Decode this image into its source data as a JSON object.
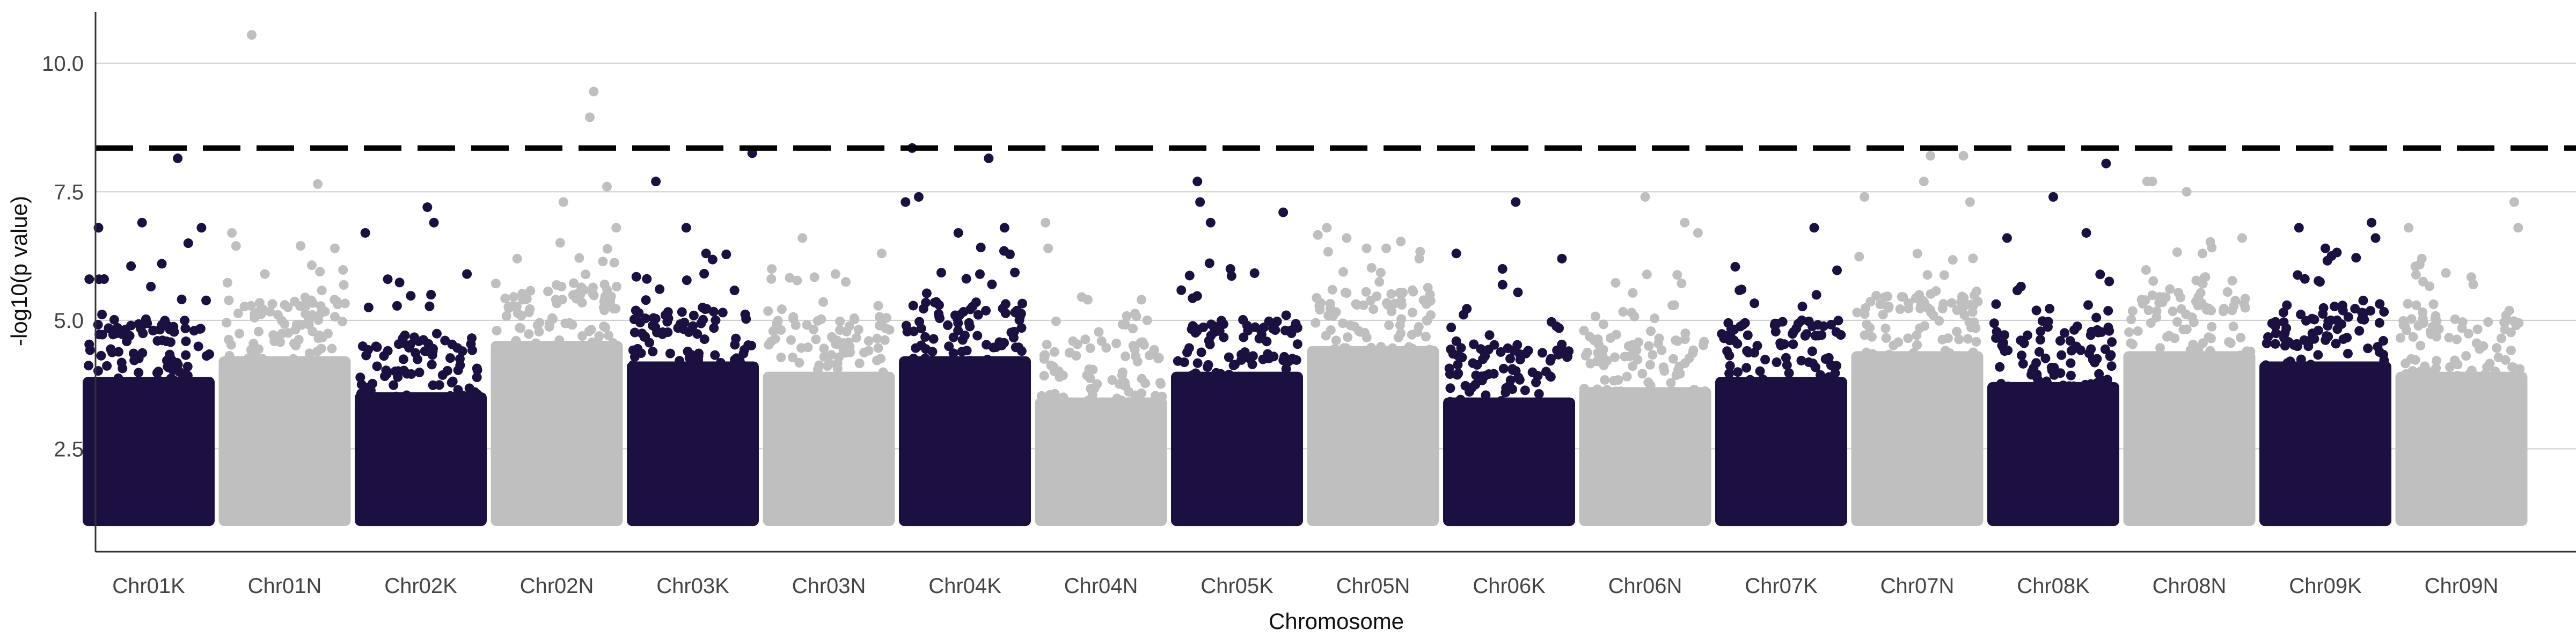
{
  "chart_data": {
    "type": "scatter",
    "subtype": "manhattan",
    "title": "",
    "xlabel": "Chromosome",
    "ylabel": "-log10(p value)",
    "ylim": [
      0.5,
      11.0
    ],
    "yticks": [
      2.5,
      5.0,
      7.5,
      10.0
    ],
    "grid": "horizontal",
    "legend": "none",
    "colors": {
      "odd": "#1c1040",
      "even": "#bfbfbf",
      "threshold": "#000000",
      "grid": "#cccccc"
    },
    "threshold": {
      "value": 8.35,
      "style": "dashed"
    },
    "categories": [
      "Chr01K",
      "Chr01N",
      "Chr02K",
      "Chr02N",
      "Chr03K",
      "Chr03N",
      "Chr04K",
      "Chr04N",
      "Chr05K",
      "Chr05N",
      "Chr06K",
      "Chr06N",
      "Chr07K",
      "Chr07N",
      "Chr08K",
      "Chr08N",
      "Chr09K",
      "Chr09N"
    ],
    "series": [
      {
        "chromosome": "Chr01K",
        "color_group": "odd",
        "dense_top": 4.5,
        "peaks": [
          [
            0.05,
            5.8
          ],
          [
            0.12,
            6.8
          ],
          [
            0.45,
            6.9
          ],
          [
            0.6,
            6.1
          ],
          [
            0.72,
            8.15
          ],
          [
            0.8,
            6.5
          ],
          [
            0.9,
            6.8
          ]
        ]
      },
      {
        "chromosome": "Chr01N",
        "color_group": "even",
        "dense_top": 4.9,
        "peaks": [
          [
            0.1,
            6.7
          ],
          [
            0.25,
            10.55
          ],
          [
            0.35,
            5.9
          ],
          [
            0.5,
            5.3
          ],
          [
            0.75,
            7.65
          ],
          [
            0.88,
            6.4
          ]
        ]
      },
      {
        "chromosome": "Chr02K",
        "color_group": "odd",
        "dense_top": 4.2,
        "peaks": [
          [
            0.08,
            6.7
          ],
          [
            0.25,
            5.8
          ],
          [
            0.55,
            7.2
          ],
          [
            0.6,
            6.9
          ],
          [
            0.85,
            5.9
          ]
        ]
      },
      {
        "chromosome": "Chr02N",
        "color_group": "even",
        "dense_top": 5.2,
        "peaks": [
          [
            0.2,
            6.2
          ],
          [
            0.55,
            7.3
          ],
          [
            0.75,
            8.95
          ],
          [
            0.78,
            9.45
          ],
          [
            0.88,
            7.6
          ],
          [
            0.95,
            6.8
          ]
        ]
      },
      {
        "chromosome": "Chr03K",
        "color_group": "odd",
        "dense_top": 4.8,
        "peaks": [
          [
            0.22,
            7.7
          ],
          [
            0.45,
            6.8
          ],
          [
            0.6,
            6.3
          ],
          [
            0.95,
            8.25
          ]
        ]
      },
      {
        "chromosome": "Chr03N",
        "color_group": "even",
        "dense_top": 4.6,
        "peaks": [
          [
            0.3,
            6.6
          ],
          [
            0.55,
            5.9
          ],
          [
            0.9,
            6.3
          ]
        ]
      },
      {
        "chromosome": "Chr04K",
        "color_group": "odd",
        "dense_top": 4.9,
        "peaks": [
          [
            0.05,
            7.3
          ],
          [
            0.1,
            8.35
          ],
          [
            0.15,
            7.4
          ],
          [
            0.45,
            6.7
          ],
          [
            0.68,
            8.15
          ],
          [
            0.8,
            6.8
          ]
        ]
      },
      {
        "chromosome": "Chr04N",
        "color_group": "even",
        "dense_top": 4.1,
        "peaks": [
          [
            0.08,
            6.9
          ],
          [
            0.1,
            6.4
          ],
          [
            0.4,
            5.4
          ],
          [
            0.85,
            5.0
          ]
        ]
      },
      {
        "chromosome": "Chr05K",
        "color_group": "odd",
        "dense_top": 4.6,
        "peaks": [
          [
            0.2,
            7.7
          ],
          [
            0.22,
            7.3
          ],
          [
            0.3,
            6.9
          ],
          [
            0.45,
            6.0
          ],
          [
            0.85,
            7.1
          ]
        ]
      },
      {
        "chromosome": "Chr05N",
        "color_group": "even",
        "dense_top": 5.1,
        "peaks": [
          [
            0.15,
            6.8
          ],
          [
            0.3,
            6.6
          ],
          [
            0.6,
            6.4
          ],
          [
            0.85,
            6.2
          ]
        ]
      },
      {
        "chromosome": "Chr06K",
        "color_group": "odd",
        "dense_top": 4.1,
        "peaks": [
          [
            0.1,
            6.3
          ],
          [
            0.45,
            6.0
          ],
          [
            0.55,
            7.3
          ],
          [
            0.9,
            6.2
          ]
        ]
      },
      {
        "chromosome": "Chr06N",
        "color_group": "even",
        "dense_top": 4.3,
        "peaks": [
          [
            0.5,
            7.4
          ],
          [
            0.8,
            6.9
          ],
          [
            0.9,
            6.7
          ]
        ]
      },
      {
        "chromosome": "Chr07K",
        "color_group": "odd",
        "dense_top": 4.5,
        "peaks": [
          [
            0.2,
            5.6
          ],
          [
            0.75,
            6.8
          ]
        ]
      },
      {
        "chromosome": "Chr07N",
        "color_group": "even",
        "dense_top": 5.0,
        "peaks": [
          [
            0.1,
            7.4
          ],
          [
            0.55,
            7.7
          ],
          [
            0.6,
            8.2
          ],
          [
            0.85,
            8.2
          ],
          [
            0.9,
            7.3
          ]
        ]
      },
      {
        "chromosome": "Chr08K",
        "color_group": "odd",
        "dense_top": 4.4,
        "peaks": [
          [
            0.15,
            6.6
          ],
          [
            0.5,
            7.4
          ],
          [
            0.75,
            6.7
          ],
          [
            0.9,
            8.05
          ]
        ]
      },
      {
        "chromosome": "Chr08N",
        "color_group": "even",
        "dense_top": 5.0,
        "peaks": [
          [
            0.18,
            7.7
          ],
          [
            0.22,
            7.7
          ],
          [
            0.48,
            7.5
          ],
          [
            0.6,
            6.3
          ],
          [
            0.9,
            6.6
          ]
        ]
      },
      {
        "chromosome": "Chr09K",
        "color_group": "odd",
        "dense_top": 4.8,
        "peaks": [
          [
            0.3,
            6.8
          ],
          [
            0.5,
            6.4
          ],
          [
            0.85,
            6.9
          ],
          [
            0.88,
            6.6
          ]
        ]
      },
      {
        "chromosome": "Chr09N",
        "color_group": "even",
        "dense_top": 4.6,
        "peaks": [
          [
            0.1,
            6.8
          ],
          [
            0.2,
            6.2
          ],
          [
            0.9,
            7.3
          ],
          [
            0.93,
            6.8
          ]
        ]
      }
    ]
  }
}
